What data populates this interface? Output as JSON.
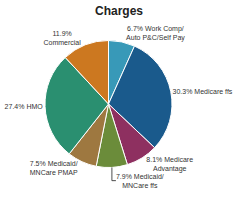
{
  "chart_data": {
    "type": "pie",
    "title": "Charges",
    "categories": [
      "6.7% Work Comp/\nAuto P&C/Self Pay",
      "30.3% Medicare ffs",
      "8.1% Medicare\nAdvantage",
      "7.9% Medicaid/\nMNCare ffs",
      "7.5% Medicaid/\nMNCare PMAP",
      "27.4% HMO",
      "11.9%\nCommercial"
    ],
    "values": [
      6.7,
      30.3,
      8.1,
      7.9,
      7.5,
      27.4,
      11.9
    ],
    "colors": [
      "#3899b8",
      "#1a5a8c",
      "#8e3060",
      "#6b8c3a",
      "#9e7840",
      "#2a8f70",
      "#cc7820"
    ]
  }
}
